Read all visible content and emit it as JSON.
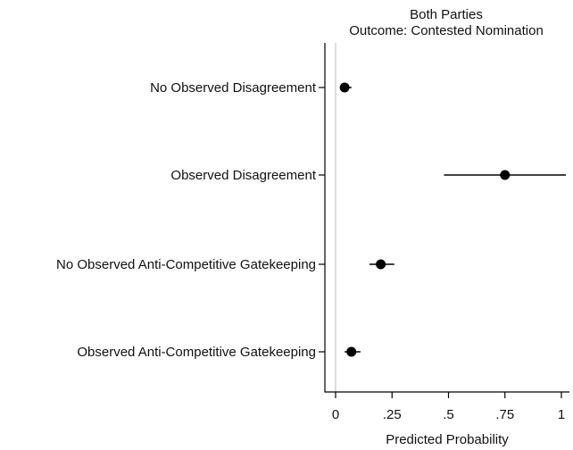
{
  "chart_data": {
    "type": "scatter",
    "title": "Both Parties",
    "subtitle": "Outcome: Contested Nomination",
    "xlabel": "Predicted Probability",
    "ylabel": "",
    "xlim": [
      0,
      1
    ],
    "x_ticks": [
      0,
      0.25,
      0.5,
      0.75,
      1
    ],
    "x_tick_labels": [
      "0",
      ".25",
      ".5",
      ".75",
      "1"
    ],
    "reference_line_x": 0,
    "categories": [
      "No Observed Disagreement",
      "Observed Disagreement",
      "No Observed Anti-Competitive Gatekeeping",
      "Observed Anti-Competitive Gatekeeping"
    ],
    "series": [
      {
        "estimate": [
          0.04,
          0.75,
          0.2,
          0.07
        ],
        "ci_lower": [
          0.02,
          0.48,
          0.15,
          0.04
        ],
        "ci_upper": [
          0.07,
          1.02,
          0.26,
          0.11
        ]
      }
    ],
    "grid": false,
    "legend": "none",
    "colors": {
      "marker": "#000000",
      "axis": "#000000",
      "reference_line": "#bbbbbb"
    }
  }
}
